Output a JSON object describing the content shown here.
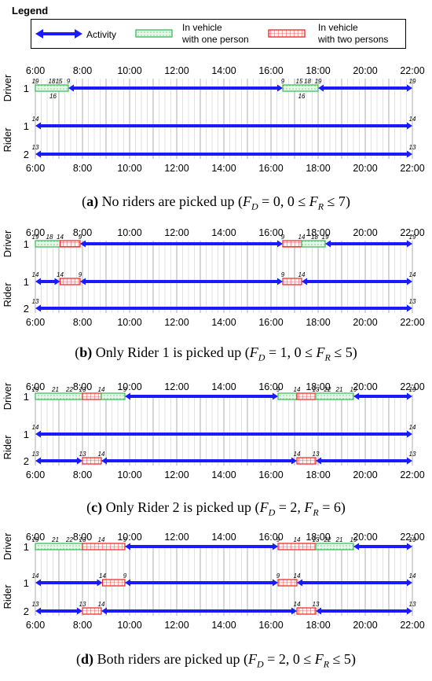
{
  "legend": {
    "title": "Legend",
    "activity": "Activity",
    "one_person_l1": "In vehicle",
    "one_person_l2": "with one person",
    "two_person_l1": "In vehicle",
    "two_person_l2": "with two persons",
    "colors": {
      "activity": "#1a1aff",
      "one": "#33bb55",
      "one_fill": "#e6f7e9",
      "two": "#ee2222",
      "two_fill": "#fff2f2"
    }
  },
  "hours": [
    "6:00",
    "8:00",
    "10:00",
    "12:00",
    "14:00",
    "16:00",
    "18:00",
    "20:00",
    "22:00"
  ],
  "y_labels": {
    "driver": "Driver",
    "rider": "Rider"
  },
  "panels": [
    {
      "caption": {
        "letter": "a",
        "text": " No riders are picked up (",
        "formula": "F_D = 0,  0 ≤ F_R ≤ 7",
        "close": ")"
      },
      "show_bottom_axis": true,
      "rows": [
        {
          "group": "driver",
          "label": "1",
          "segments": [
            {
              "type": "one",
              "start": 6.0,
              "end": 7.4
            },
            {
              "type": "activity",
              "start": 7.4,
              "end": 16.5
            },
            {
              "type": "one",
              "start": 16.5,
              "end": 18.0
            },
            {
              "type": "activity",
              "start": 18.0,
              "end": 22.0
            }
          ],
          "above": [
            {
              "t": 6.0,
              "text": "19"
            },
            {
              "t": 6.7,
              "text": "18"
            },
            {
              "t": 7.0,
              "text": "15"
            },
            {
              "t": 7.4,
              "text": "9"
            },
            {
              "t": 16.5,
              "text": "9"
            },
            {
              "t": 17.2,
              "text": "15"
            },
            {
              "t": 17.55,
              "text": "18"
            },
            {
              "t": 18.0,
              "text": "19"
            },
            {
              "t": 22.0,
              "text": "19"
            }
          ],
          "below": [
            {
              "t": 6.75,
              "text": "16"
            },
            {
              "t": 17.3,
              "text": "16"
            }
          ]
        },
        {
          "group": "rider",
          "label": "1",
          "segments": [
            {
              "type": "activity",
              "start": 6.0,
              "end": 22.0
            }
          ],
          "above": [
            {
              "t": 6.0,
              "text": "14"
            },
            {
              "t": 22.0,
              "text": "14"
            }
          ],
          "below": []
        },
        {
          "group": "rider",
          "label": "2",
          "segments": [
            {
              "type": "activity",
              "start": 6.0,
              "end": 22.0
            }
          ],
          "above": [
            {
              "t": 6.0,
              "text": "13"
            },
            {
              "t": 22.0,
              "text": "13"
            }
          ],
          "below": []
        }
      ]
    },
    {
      "caption": {
        "letter": "b",
        "text": " Only Rider 1 is picked up (",
        "formula": "F_D = 1,  0 ≤ F_R ≤ 5",
        "close": ")"
      },
      "show_bottom_axis": true,
      "rows": [
        {
          "group": "driver",
          "label": "1",
          "segments": [
            {
              "type": "one",
              "start": 6.0,
              "end": 7.05
            },
            {
              "type": "two",
              "start": 7.05,
              "end": 7.9
            },
            {
              "type": "activity",
              "start": 7.9,
              "end": 16.5
            },
            {
              "type": "two",
              "start": 16.5,
              "end": 17.3
            },
            {
              "type": "one",
              "start": 17.3,
              "end": 18.3
            },
            {
              "type": "activity",
              "start": 18.3,
              "end": 22.0
            }
          ],
          "above": [
            {
              "t": 6.0,
              "text": "19"
            },
            {
              "t": 6.6,
              "text": "18"
            },
            {
              "t": 7.05,
              "text": "14"
            },
            {
              "t": 7.9,
              "text": "9"
            },
            {
              "t": 16.5,
              "text": "9"
            },
            {
              "t": 17.3,
              "text": "14"
            },
            {
              "t": 17.85,
              "text": "18"
            },
            {
              "t": 18.3,
              "text": "19"
            },
            {
              "t": 22.0,
              "text": "19"
            }
          ],
          "below": []
        },
        {
          "group": "rider",
          "label": "1",
          "segments": [
            {
              "type": "activity",
              "start": 6.0,
              "end": 7.05
            },
            {
              "type": "two",
              "start": 7.05,
              "end": 7.9
            },
            {
              "type": "activity",
              "start": 7.9,
              "end": 16.5
            },
            {
              "type": "two",
              "start": 16.5,
              "end": 17.3
            },
            {
              "type": "activity",
              "start": 17.3,
              "end": 22.0
            }
          ],
          "above": [
            {
              "t": 6.0,
              "text": "14"
            },
            {
              "t": 7.05,
              "text": "14"
            },
            {
              "t": 7.9,
              "text": "9"
            },
            {
              "t": 16.5,
              "text": "9"
            },
            {
              "t": 17.3,
              "text": "14"
            },
            {
              "t": 22.0,
              "text": "14"
            }
          ],
          "below": []
        },
        {
          "group": "rider",
          "label": "2",
          "segments": [
            {
              "type": "activity",
              "start": 6.0,
              "end": 22.0
            }
          ],
          "above": [
            {
              "t": 6.0,
              "text": "13"
            },
            {
              "t": 22.0,
              "text": "13"
            }
          ],
          "below": []
        }
      ]
    },
    {
      "caption": {
        "letter": "c",
        "text": " Only Rider 2 is picked up (",
        "formula": "F_D = 2,  F_R = 6",
        "close": ")"
      },
      "show_bottom_axis": true,
      "rows": [
        {
          "group": "driver",
          "label": "1",
          "segments": [
            {
              "type": "one",
              "start": 6.0,
              "end": 8.0
            },
            {
              "type": "two",
              "start": 8.0,
              "end": 8.8
            },
            {
              "type": "one",
              "start": 8.8,
              "end": 9.8
            },
            {
              "type": "activity",
              "start": 9.8,
              "end": 16.3
            },
            {
              "type": "one",
              "start": 16.3,
              "end": 17.1
            },
            {
              "type": "two",
              "start": 17.1,
              "end": 17.9
            },
            {
              "type": "one",
              "start": 17.9,
              "end": 19.5
            },
            {
              "type": "activity",
              "start": 19.5,
              "end": 22.0
            }
          ],
          "above": [
            {
              "t": 6.0,
              "text": "19"
            },
            {
              "t": 6.85,
              "text": "21"
            },
            {
              "t": 7.45,
              "text": "22"
            },
            {
              "t": 8.0,
              "text": "13"
            },
            {
              "t": 8.8,
              "text": "14"
            },
            {
              "t": 9.8,
              "text": "9"
            },
            {
              "t": 16.3,
              "text": "9"
            },
            {
              "t": 17.1,
              "text": "14"
            },
            {
              "t": 17.9,
              "text": "13"
            },
            {
              "t": 18.4,
              "text": "22"
            },
            {
              "t": 18.9,
              "text": "21"
            },
            {
              "t": 19.5,
              "text": "19"
            },
            {
              "t": 22.0,
              "text": "19"
            }
          ],
          "below": []
        },
        {
          "group": "rider",
          "label": "1",
          "segments": [
            {
              "type": "activity",
              "start": 6.0,
              "end": 22.0
            }
          ],
          "above": [
            {
              "t": 6.0,
              "text": "14"
            },
            {
              "t": 22.0,
              "text": "14"
            }
          ],
          "below": []
        },
        {
          "group": "rider",
          "label": "2",
          "segments": [
            {
              "type": "activity",
              "start": 6.0,
              "end": 8.0
            },
            {
              "type": "two",
              "start": 8.0,
              "end": 8.8
            },
            {
              "type": "activity",
              "start": 8.8,
              "end": 17.1
            },
            {
              "type": "two",
              "start": 17.1,
              "end": 17.9
            },
            {
              "type": "activity",
              "start": 17.9,
              "end": 22.0
            }
          ],
          "above": [
            {
              "t": 6.0,
              "text": "13"
            },
            {
              "t": 8.0,
              "text": "13"
            },
            {
              "t": 8.8,
              "text": "14"
            },
            {
              "t": 17.1,
              "text": "14"
            },
            {
              "t": 17.9,
              "text": "13"
            },
            {
              "t": 22.0,
              "text": "13"
            }
          ],
          "below": []
        }
      ]
    },
    {
      "caption": {
        "letter": "d",
        "text": " Both riders are picked up (",
        "formula": "F_D = 2,  0 ≤ F_R ≤ 5",
        "close": ")"
      },
      "show_bottom_axis": true,
      "rows": [
        {
          "group": "driver",
          "label": "1",
          "segments": [
            {
              "type": "one",
              "start": 6.0,
              "end": 8.0
            },
            {
              "type": "two",
              "start": 8.0,
              "end": 9.8
            },
            {
              "type": "activity",
              "start": 9.8,
              "end": 16.3
            },
            {
              "type": "two",
              "start": 16.3,
              "end": 17.9
            },
            {
              "type": "one",
              "start": 17.9,
              "end": 19.5
            },
            {
              "type": "activity",
              "start": 19.5,
              "end": 22.0
            }
          ],
          "above": [
            {
              "t": 6.0,
              "text": "19"
            },
            {
              "t": 6.85,
              "text": "21"
            },
            {
              "t": 7.45,
              "text": "22"
            },
            {
              "t": 8.0,
              "text": "13"
            },
            {
              "t": 8.8,
              "text": "14"
            },
            {
              "t": 9.8,
              "text": "9"
            },
            {
              "t": 16.3,
              "text": "9"
            },
            {
              "t": 17.1,
              "text": "14"
            },
            {
              "t": 17.9,
              "text": "13"
            },
            {
              "t": 18.4,
              "text": "22"
            },
            {
              "t": 18.9,
              "text": "21"
            },
            {
              "t": 19.5,
              "text": "19"
            },
            {
              "t": 22.0,
              "text": "19"
            }
          ],
          "below": []
        },
        {
          "group": "rider",
          "label": "1",
          "segments": [
            {
              "type": "activity",
              "start": 6.0,
              "end": 8.85
            },
            {
              "type": "two",
              "start": 8.85,
              "end": 9.8
            },
            {
              "type": "activity",
              "start": 9.8,
              "end": 16.3
            },
            {
              "type": "two",
              "start": 16.3,
              "end": 17.1
            },
            {
              "type": "activity",
              "start": 17.1,
              "end": 22.0
            }
          ],
          "above": [
            {
              "t": 6.0,
              "text": "14"
            },
            {
              "t": 8.85,
              "text": "14"
            },
            {
              "t": 9.8,
              "text": "9"
            },
            {
              "t": 16.3,
              "text": "9"
            },
            {
              "t": 17.1,
              "text": "14"
            },
            {
              "t": 22.0,
              "text": "14"
            }
          ],
          "below": []
        },
        {
          "group": "rider",
          "label": "2",
          "segments": [
            {
              "type": "activity",
              "start": 6.0,
              "end": 8.0
            },
            {
              "type": "two",
              "start": 8.0,
              "end": 8.8
            },
            {
              "type": "activity",
              "start": 8.8,
              "end": 17.1
            },
            {
              "type": "two",
              "start": 17.1,
              "end": 17.9
            },
            {
              "type": "activity",
              "start": 17.9,
              "end": 22.0
            }
          ],
          "above": [
            {
              "t": 6.0,
              "text": "13"
            },
            {
              "t": 8.0,
              "text": "13"
            },
            {
              "t": 8.8,
              "text": "14"
            },
            {
              "t": 17.1,
              "text": "14"
            },
            {
              "t": 17.9,
              "text": "13"
            },
            {
              "t": 22.0,
              "text": "13"
            }
          ],
          "below": []
        }
      ]
    }
  ]
}
